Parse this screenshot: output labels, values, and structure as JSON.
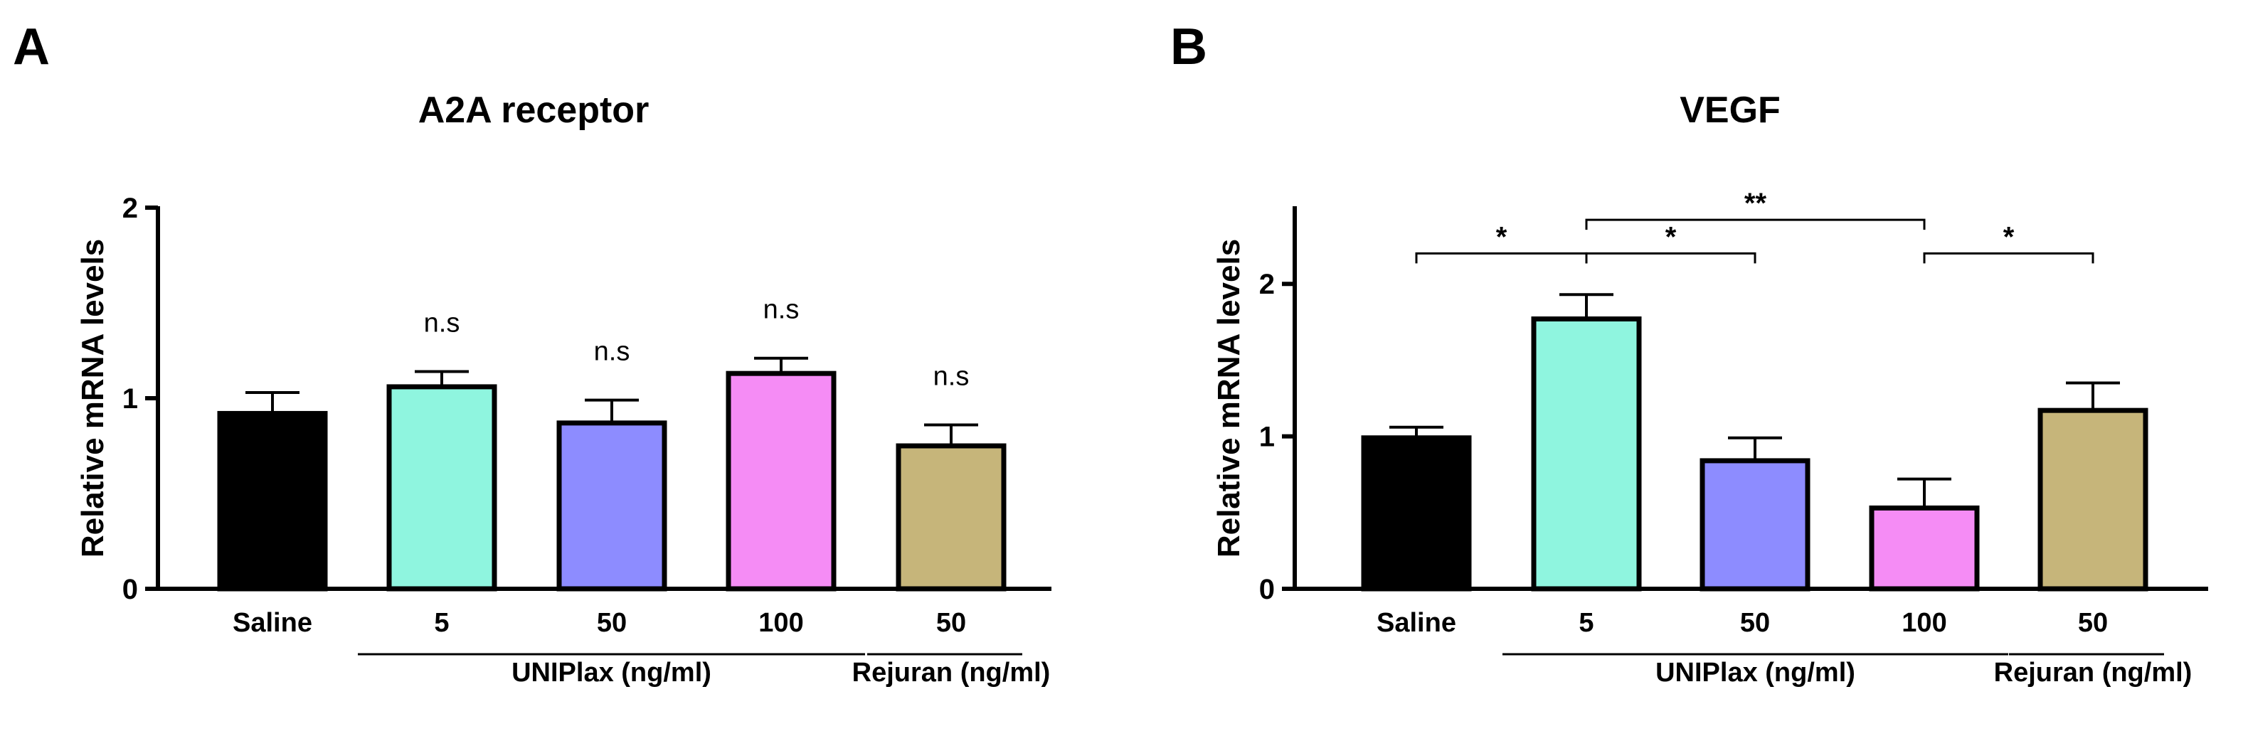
{
  "chart_data": [
    {
      "type": "bar",
      "panel": "A",
      "title": "A2A receptor",
      "ylabel": "Relative mRNA levels",
      "xlabel": "",
      "ylim": [
        0,
        2
      ],
      "yticks": [
        "0",
        "1",
        "2"
      ],
      "categories": [
        "Saline",
        "5",
        "50",
        "100",
        "50"
      ],
      "values": [
        0.92,
        1.06,
        0.87,
        1.13,
        0.75
      ],
      "errors": [
        0.11,
        0.08,
        0.12,
        0.08,
        0.11
      ],
      "colors": [
        "#000000",
        "#8ff5df",
        "#8d8cff",
        "#f58cf5",
        "#c6b57a"
      ],
      "groups": [
        {
          "label": "UNIPlax (ng/ml)",
          "from": 1,
          "to": 3
        },
        {
          "label": "Rejuran (ng/ml)",
          "from": 4,
          "to": 4
        }
      ],
      "annotations": [
        "",
        "n.s",
        "n.s",
        "n.s",
        "n.s"
      ],
      "comparisons": []
    },
    {
      "type": "bar",
      "panel": "B",
      "title": "VEGF",
      "ylabel": "Relative mRNA levels",
      "xlabel": "",
      "ylim": [
        0,
        2.5
      ],
      "yticks": [
        "0",
        "1",
        "2"
      ],
      "categories": [
        "Saline",
        "5",
        "50",
        "100",
        "50"
      ],
      "values": [
        0.99,
        1.77,
        0.84,
        0.53,
        1.17
      ],
      "errors": [
        0.07,
        0.16,
        0.15,
        0.19,
        0.18
      ],
      "colors": [
        "#000000",
        "#8ff5df",
        "#8d8cff",
        "#f58cf5",
        "#c6b57a"
      ],
      "groups": [
        {
          "label": "UNIPlax (ng/ml)",
          "from": 1,
          "to": 3
        },
        {
          "label": "Rejuran (ng/ml)",
          "from": 4,
          "to": 4
        }
      ],
      "annotations": [
        "",
        "",
        "",
        "",
        ""
      ],
      "comparisons": [
        {
          "from": 0,
          "to": 1,
          "level": 2.2,
          "label": "*"
        },
        {
          "from": 1,
          "to": 2,
          "level": 2.2,
          "label": "*"
        },
        {
          "from": 1,
          "to": 3,
          "level": 2.42,
          "label": "**"
        },
        {
          "from": 3,
          "to": 4,
          "level": 2.2,
          "label": "*"
        }
      ]
    }
  ]
}
